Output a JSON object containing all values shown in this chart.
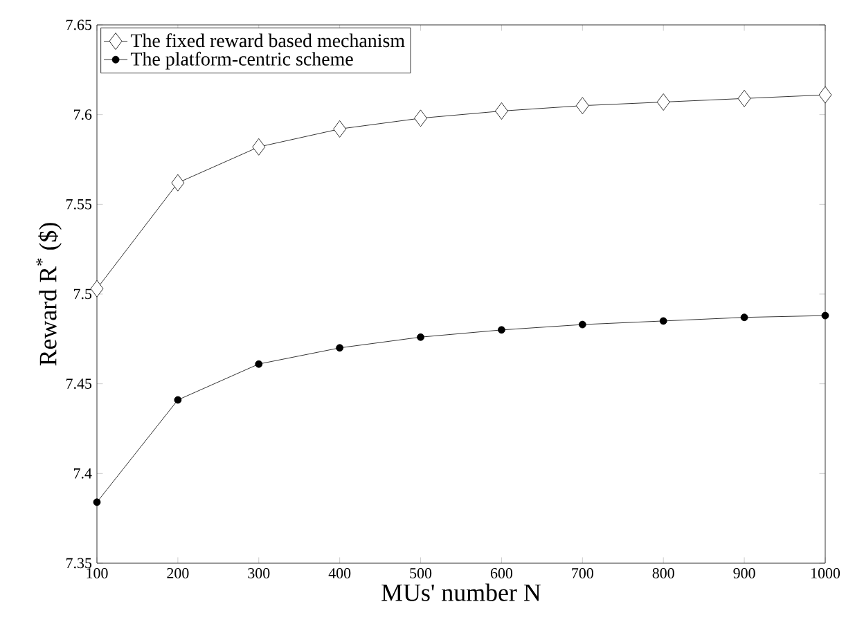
{
  "chart_data": {
    "type": "line",
    "xlabel": "MUs' number N",
    "ylabel": "Reward R$^{*}$ ($)",
    "x": [
      100,
      200,
      300,
      400,
      500,
      600,
      700,
      800,
      900,
      1000
    ],
    "series": [
      {
        "name": "The fixed reward based mechanism",
        "color": "#000000",
        "marker": "diamond",
        "values": [
          7.503,
          7.562,
          7.582,
          7.592,
          7.598,
          7.602,
          7.605,
          7.607,
          7.609,
          7.611
        ]
      },
      {
        "name": "The platform-centric scheme",
        "color": "#000000",
        "marker": "circle",
        "values": [
          7.384,
          7.441,
          7.461,
          7.47,
          7.476,
          7.48,
          7.483,
          7.485,
          7.487,
          7.488
        ]
      }
    ],
    "xlim": [
      100,
      1000
    ],
    "ylim": [
      7.35,
      7.65
    ],
    "xticks": [
      100,
      200,
      300,
      400,
      500,
      600,
      700,
      800,
      900,
      1000
    ],
    "yticks": [
      7.35,
      7.4,
      7.45,
      7.5,
      7.55,
      7.6,
      7.65
    ],
    "grid": false,
    "legend": "top left",
    "line_style": "solid"
  }
}
